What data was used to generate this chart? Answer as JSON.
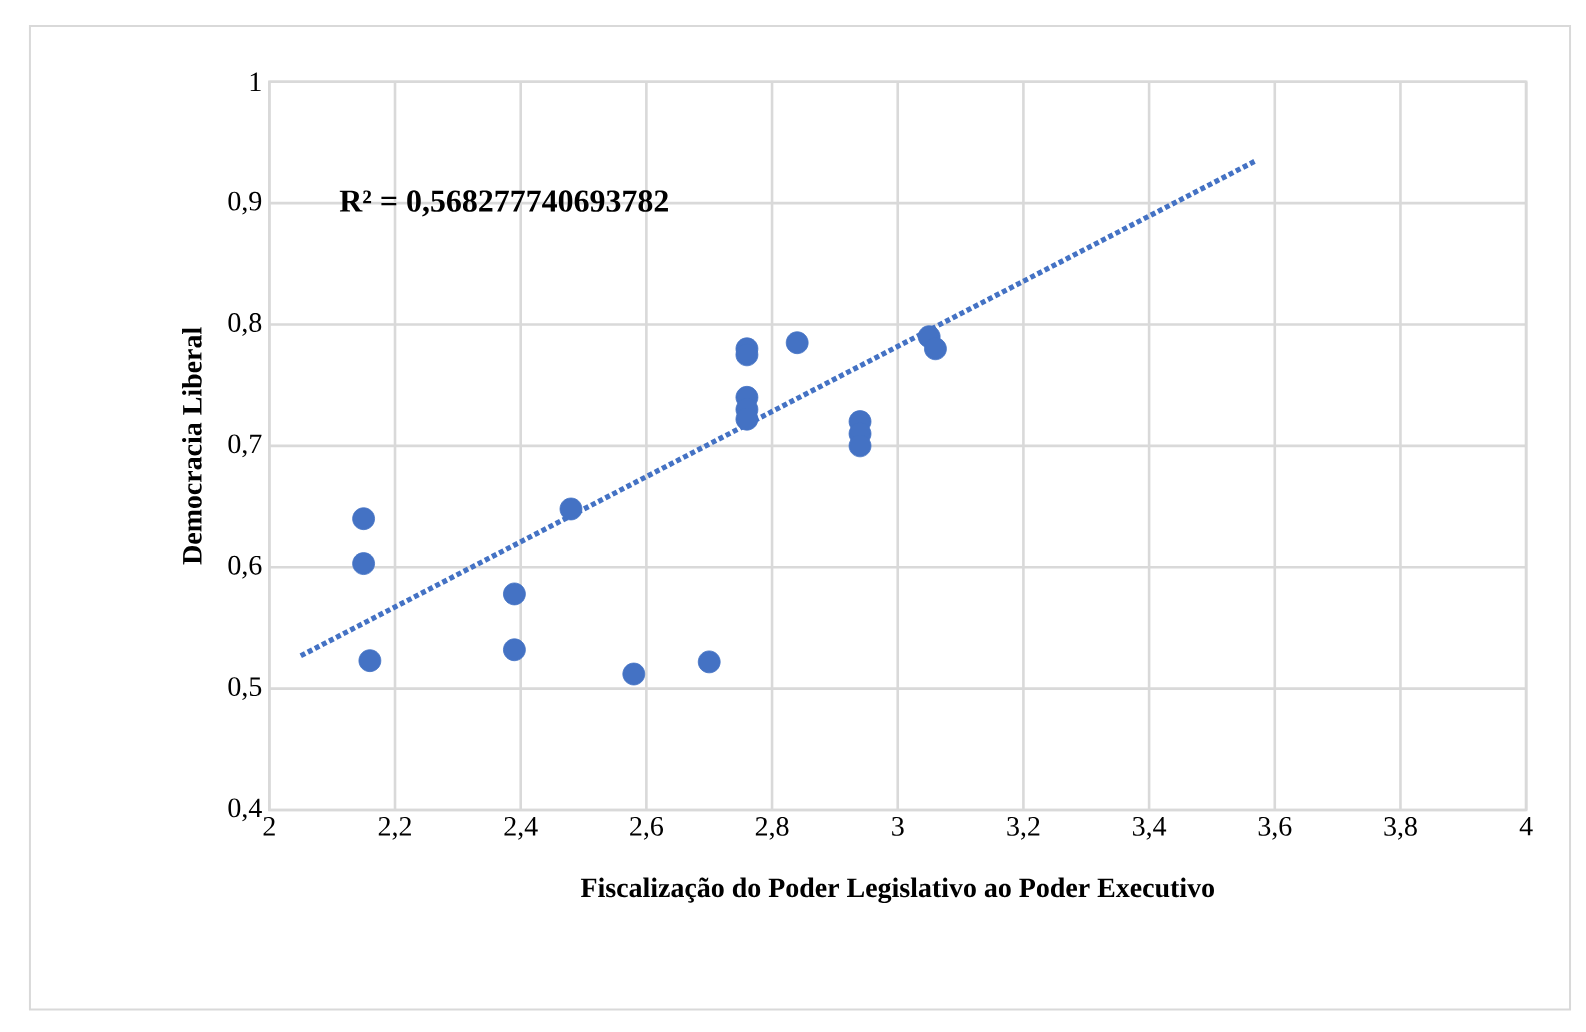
{
  "chart_data": {
    "type": "scatter",
    "xlabel": "Fiscalização do Poder Legislativo ao Poder Executivo",
    "ylabel": "Democracia Liberal",
    "annotations": [
      "R² = 0,568277740693782"
    ],
    "xlim": [
      2,
      4
    ],
    "ylim": [
      0.4,
      1
    ],
    "xticks": [
      2,
      {
        "value": 2.2,
        "label": "2,2"
      },
      {
        "value": 2.4,
        "label": "2,4"
      },
      {
        "value": 2.6,
        "label": "2,6"
      },
      {
        "value": 2.8,
        "label": "2,8"
      },
      3,
      {
        "value": 3.2,
        "label": "3,2"
      },
      {
        "value": 3.4,
        "label": "3,4"
      },
      {
        "value": 3.6,
        "label": "3,6"
      },
      {
        "value": 3.8,
        "label": "3,8"
      },
      4
    ],
    "yticks": [
      {
        "value": 0.4,
        "label": "0,4"
      },
      {
        "value": 0.5,
        "label": "0,5"
      },
      {
        "value": 0.6,
        "label": "0,6"
      },
      {
        "value": 0.7,
        "label": "0,7"
      },
      {
        "value": 0.8,
        "label": "0,8"
      },
      {
        "value": 0.9,
        "label": "0,9"
      },
      1
    ],
    "grid": true,
    "series": [
      {
        "color": "#4472c4",
        "marker": "circle",
        "x": [
          2.15,
          2.15,
          2.16,
          2.39,
          2.39,
          2.48,
          2.58,
          2.7,
          2.76,
          2.76,
          2.76,
          2.76,
          2.76,
          2.84,
          2.94,
          2.94,
          2.94,
          3.05,
          3.06
        ],
        "values": [
          0.64,
          0.603,
          0.523,
          0.578,
          0.532,
          0.648,
          0.512,
          0.522,
          0.78,
          0.775,
          0.74,
          0.73,
          0.722,
          0.785,
          0.72,
          0.71,
          0.7,
          0.79,
          0.78
        ]
      },
      {
        "type": "line",
        "color": "#4472c4",
        "marker": "none",
        "line_style": "dotted",
        "x": [
          2.05,
          3.57
        ],
        "values": [
          0.527,
          0.935
        ]
      }
    ]
  }
}
